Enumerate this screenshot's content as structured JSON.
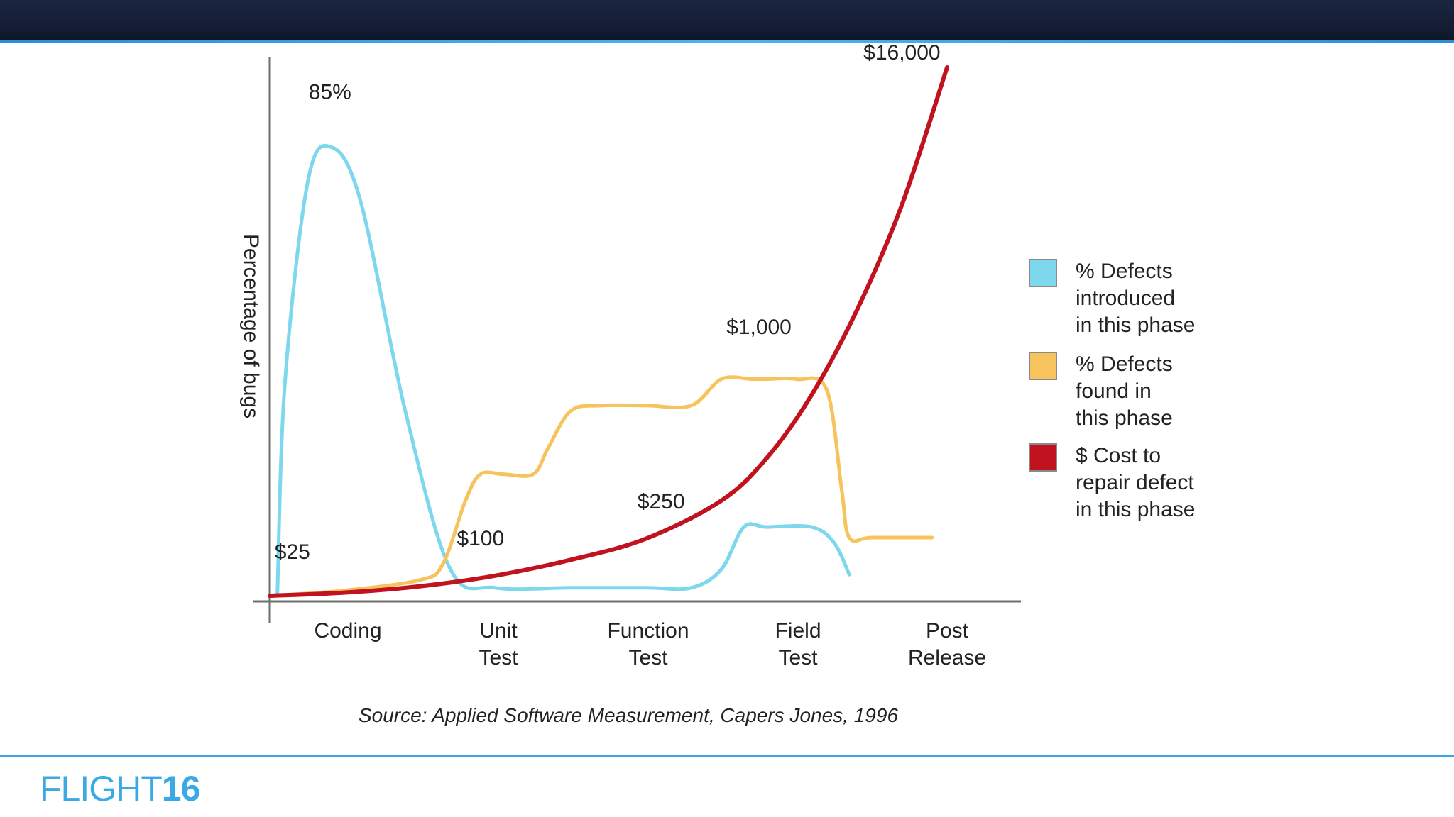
{
  "brand": {
    "light": "FLIGHT",
    "bold": "16"
  },
  "chart_data": {
    "type": "line",
    "title": "",
    "xlabel": "",
    "ylabel": "Percentage of bugs",
    "categories": [
      [
        "Coding"
      ],
      [
        "Unit",
        "Test"
      ],
      [
        "Function",
        "Test"
      ],
      [
        "Field",
        "Test"
      ],
      [
        "Post",
        "Release"
      ]
    ],
    "series": [
      {
        "name": "% Defects introduced in this phase",
        "legend_lines": [
          "% Defects",
          "introduced",
          "in this phase"
        ],
        "color": "#7dd8ee",
        "x": [
          0.05,
          0.1,
          0.25,
          0.4,
          0.6,
          0.9,
          1.2,
          1.5,
          2.0,
          2.5,
          2.8,
          3.0,
          3.15,
          3.3,
          3.6,
          3.75,
          3.85
        ],
        "y": [
          0,
          40,
          78,
          85,
          75,
          35,
          5,
          1.5,
          1.5,
          1.5,
          1.5,
          5,
          13,
          13,
          13,
          10,
          4
        ]
      },
      {
        "name": "% Defects found in this phase",
        "legend_lines": [
          "% Defects",
          "found in",
          "this phase"
        ],
        "color": "#f7c35c",
        "x": [
          0,
          0.5,
          1.0,
          1.15,
          1.3,
          1.4,
          1.55,
          1.75,
          1.85,
          2.0,
          2.2,
          2.5,
          2.8,
          3.0,
          3.2,
          3.3,
          3.5,
          3.7,
          3.8,
          3.85,
          4.0,
          4.4
        ],
        "y": [
          0,
          1,
          3,
          6,
          18,
          23,
          23,
          23,
          28,
          35,
          36,
          36,
          36,
          41,
          41,
          41,
          41,
          39,
          20,
          11,
          11,
          11
        ]
      },
      {
        "name": "$ Cost to repair defect in this phase",
        "legend_lines": [
          "$ Cost to",
          "repair defect",
          "in this phase"
        ],
        "color": "#c1121f",
        "x": [
          0,
          0.5,
          1.0,
          1.5,
          2.0,
          2.5,
          3.0,
          3.3,
          3.6,
          3.9,
          4.2,
          4.5
        ],
        "y": [
          0,
          0.6,
          1.8,
          3.8,
          6.8,
          10.8,
          18,
          26,
          38,
          54,
          74,
          100
        ]
      }
    ],
    "annotations": [
      {
        "text": "85%",
        "x": 0.4,
        "y": 94
      },
      {
        "text": "$25",
        "x": 0.15,
        "y": 7
      },
      {
        "text": "$100",
        "x": 1.4,
        "y": 9.5
      },
      {
        "text": "$250",
        "x": 2.6,
        "y": 16.5
      },
      {
        "text": "$1,000",
        "x": 3.25,
        "y": 49.5
      },
      {
        "text": "$16,000",
        "x": 4.2,
        "y": 101.5
      }
    ],
    "xlim": [
      0,
      4.9
    ],
    "ylim": [
      0,
      106
    ],
    "grid": false,
    "legend_position": "right",
    "source_note": "Source: Applied Software Measurement, Capers Jones, 1996"
  }
}
